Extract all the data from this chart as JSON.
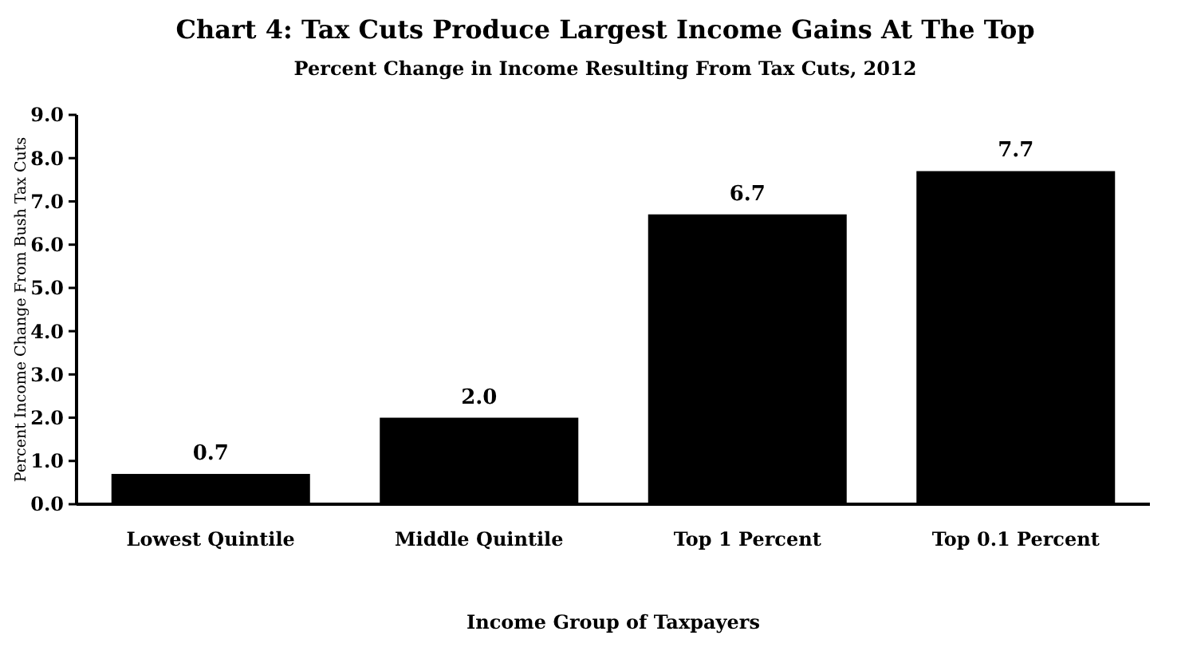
{
  "chart_data": {
    "type": "bar",
    "title": "Chart 4: Tax Cuts Produce Largest Income Gains At The Top",
    "subtitle": "Percent Change in Income Resulting From Tax Cuts, 2012",
    "xlabel": "Income Group of Taxpayers",
    "ylabel": "Percent Income Change From Bush Tax Cuts",
    "categories": [
      "Lowest Quintile",
      "Middle Quintile",
      "Top 1 Percent",
      "Top 0.1 Percent"
    ],
    "values": [
      0.7,
      2.0,
      6.7,
      7.7
    ],
    "color": "#000000",
    "value_labels": [
      "0.7",
      "2.0",
      "6.7",
      "7.7"
    ],
    "ylim": [
      0,
      9
    ],
    "yticks": [
      {
        "value": 0,
        "label": "0.0"
      },
      {
        "value": 1,
        "label": "1.0"
      },
      {
        "value": 2,
        "label": "2.0"
      },
      {
        "value": 3,
        "label": "3.0"
      },
      {
        "value": 4,
        "label": "4.0"
      },
      {
        "value": 5,
        "label": "5.0"
      },
      {
        "value": 6,
        "label": "6.0"
      },
      {
        "value": 7,
        "label": "7.0"
      },
      {
        "value": 8,
        "label": "8.0"
      },
      {
        "value": 9,
        "label": "9.0"
      }
    ]
  }
}
